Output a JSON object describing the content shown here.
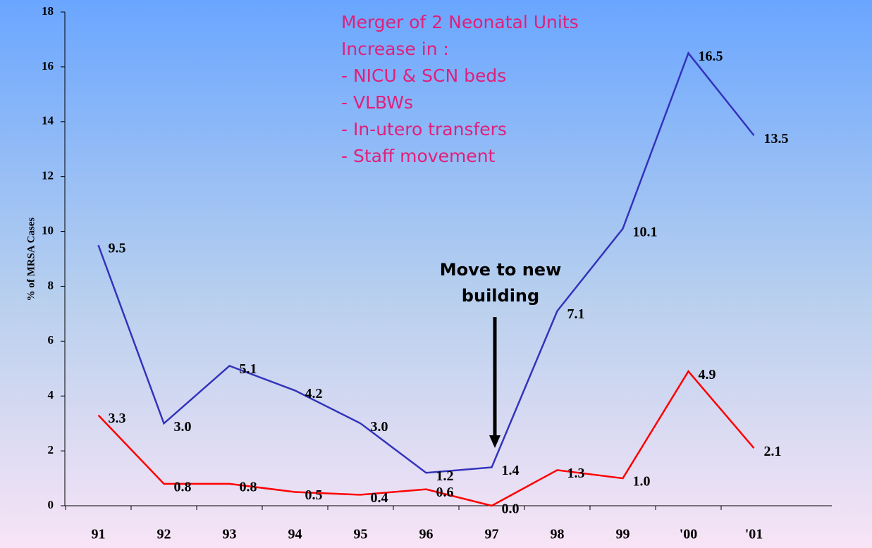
{
  "chart_data": {
    "type": "line",
    "y_label": "% of MRSA Cases",
    "categories": [
      "91",
      "92",
      "93",
      "94",
      "95",
      "96",
      "97",
      "98",
      "99",
      "'00",
      "'01"
    ],
    "series": [
      {
        "color": "#3333bb",
        "values": [
          9.5,
          3.0,
          5.1,
          4.2,
          3.0,
          1.2,
          1.4,
          7.1,
          10.1,
          16.5,
          13.5
        ],
        "value_labels": [
          "9.5",
          "3.0",
          "5.1",
          "4.2",
          "3.0",
          "1.2",
          "1.4",
          "7.1",
          "10.1",
          "16.5",
          "13.5"
        ]
      },
      {
        "color": "#ff0000",
        "values": [
          3.3,
          0.8,
          0.8,
          0.5,
          0.4,
          0.6,
          0.0,
          1.3,
          1.0,
          4.9,
          2.1
        ],
        "value_labels": [
          "3.3",
          "0.8",
          "0.8",
          "0.5",
          "0.4",
          "0.6",
          "0.0",
          "1.3",
          "1.0",
          "4.9",
          "2.1"
        ]
      }
    ],
    "ylim": [
      0,
      18
    ],
    "yticks": [
      0,
      2,
      4,
      6,
      8,
      10,
      12,
      14,
      16,
      18
    ],
    "notes": [
      "Merger of 2 Neonatal Units",
      "Increase in :",
      "- NICU & SCN beds",
      "- VLBWs",
      "- In-utero transfers",
      "- Staff movement"
    ],
    "arrow_annotation": [
      "Move to new",
      "building"
    ]
  }
}
